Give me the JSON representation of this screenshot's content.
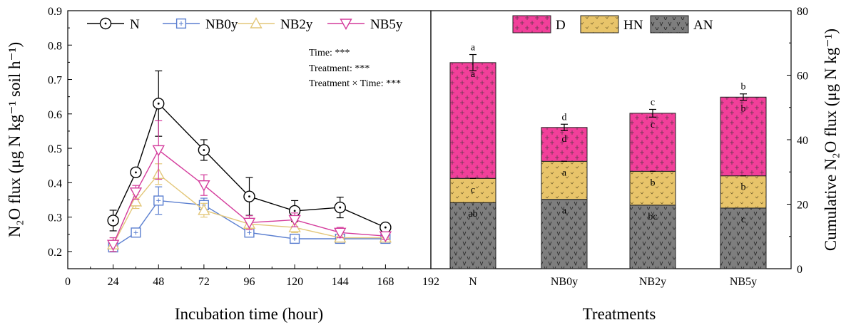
{
  "chart_data": [
    {
      "type": "line",
      "xlabel": "Incubation time (hour)",
      "ylabel": "N₂O flux (μg N kg⁻¹ soil h⁻¹)",
      "xlim": [
        0,
        192
      ],
      "ylim": [
        0.15,
        0.9
      ],
      "xticks": [
        "0",
        "24",
        "48",
        "72",
        "96",
        "120",
        "144",
        "168",
        "192"
      ],
      "yticks": [
        "0.2",
        "0.3",
        "0.4",
        "0.5",
        "0.6",
        "0.7",
        "0.8",
        "0.9"
      ],
      "x": [
        24,
        36,
        48,
        72,
        96,
        120,
        144,
        168
      ],
      "legend_position": "top",
      "series": [
        {
          "name": "N",
          "color": "#000000",
          "marker": "circle",
          "values": [
            0.29,
            0.43,
            0.63,
            0.495,
            0.36,
            0.318,
            0.328,
            0.27
          ],
          "errors": [
            0.03,
            0.01,
            0.095,
            0.03,
            0.055,
            0.03,
            0.03,
            0.01
          ]
        },
        {
          "name": "NB0y",
          "color": "#5b7fd0",
          "marker": "square",
          "values": [
            0.212,
            0.255,
            0.348,
            0.335,
            0.255,
            0.237,
            0.237,
            0.237
          ],
          "errors": [
            0.01,
            0.01,
            0.04,
            0.02,
            0.01,
            0.01,
            0.01,
            0.01
          ]
        },
        {
          "name": "NB2y",
          "color": "#e3c77a",
          "marker": "triangle-up",
          "values": [
            0.22,
            0.345,
            0.425,
            0.32,
            0.28,
            0.27,
            0.24,
            0.24
          ],
          "errors": [
            0.02,
            0.02,
            0.03,
            0.02,
            0.015,
            0.015,
            0.01,
            0.01
          ]
        },
        {
          "name": "NB5y",
          "color": "#d43c9c",
          "marker": "triangle-down",
          "values": [
            0.22,
            0.372,
            0.495,
            0.393,
            0.284,
            0.292,
            0.255,
            0.245
          ],
          "errors": [
            0.02,
            0.02,
            0.085,
            0.03,
            0.02,
            0.02,
            0.015,
            0.01
          ]
        }
      ],
      "annotations": [
        "Time: ***",
        "Treatment: ***",
        "Treatment × Time: ***"
      ]
    },
    {
      "type": "bar",
      "stacked": true,
      "xlabel": "Treatments",
      "ylabel": "Cumulative N₂O flux (μg N kg⁻¹)",
      "ylim": [
        0,
        80
      ],
      "yticks": [
        "0",
        "20",
        "40",
        "60",
        "80"
      ],
      "categories": [
        "N",
        "NB0y",
        "NB2y",
        "NB5y"
      ],
      "legend_position": "top",
      "series": [
        {
          "name": "AN",
          "color": "#808080",
          "values": [
            20.5,
            21.5,
            19.7,
            18.8
          ],
          "letters": [
            "ab",
            "a",
            "bc",
            "c"
          ]
        },
        {
          "name": "HN",
          "color": "#e8c46a",
          "values": [
            7.5,
            11.8,
            10.5,
            10.0
          ],
          "letters": [
            "c",
            "a",
            "b",
            "b"
          ]
        },
        {
          "name": "D",
          "color": "#f23f9a",
          "values": [
            35.9,
            10.5,
            18.0,
            24.4
          ],
          "letters": [
            "a",
            "d",
            "c",
            "b"
          ]
        }
      ],
      "legend_order": [
        "D",
        "HN",
        "AN"
      ],
      "totals": [
        63.9,
        43.8,
        48.2,
        53.2
      ],
      "total_errors": [
        2.5,
        1.0,
        1.2,
        1.0
      ],
      "total_letters": [
        "a",
        "d",
        "c",
        "b"
      ]
    }
  ]
}
